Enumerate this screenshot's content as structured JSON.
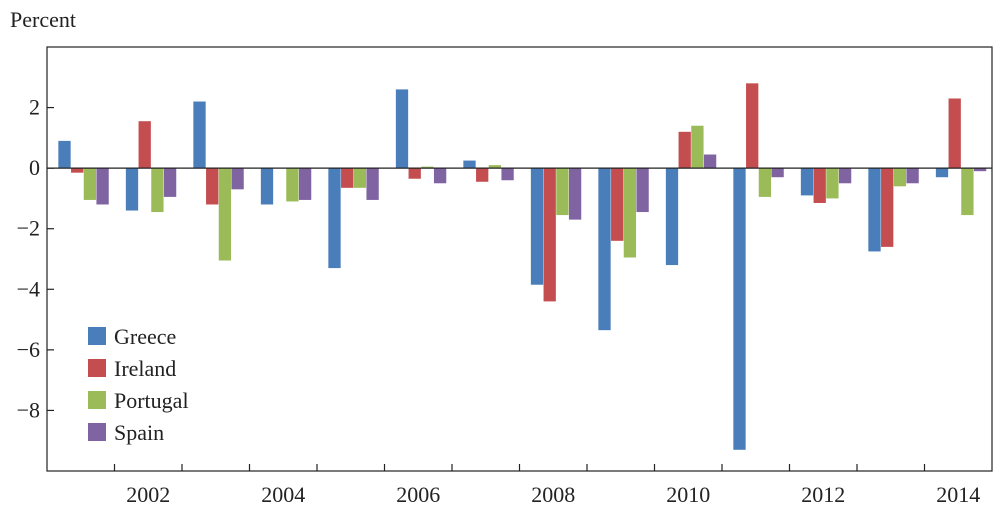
{
  "chart_data": {
    "type": "bar",
    "unit_label": "Percent",
    "x_tick_labels": [
      "2002",
      "2004",
      "2006",
      "2008",
      "2010",
      "2012",
      "2014"
    ],
    "categories": [
      "2001",
      "2002",
      "2003",
      "2004",
      "2005",
      "2006",
      "2007",
      "2008",
      "2009",
      "2010",
      "2011",
      "2012",
      "2013",
      "2014"
    ],
    "ylim": [
      -10,
      4
    ],
    "y_ticks": [
      2,
      0,
      -2,
      -4,
      -6,
      -8
    ],
    "y_tick_labels": [
      "2",
      "0",
      "−2",
      "−4",
      "−6",
      "−8"
    ],
    "grid": false,
    "legend_position": "bottom-left",
    "series": [
      {
        "name": "Greece",
        "color": "#4a7ebb",
        "values": [
          0.9,
          -1.4,
          2.2,
          -1.2,
          -3.3,
          2.6,
          0.25,
          -3.85,
          -5.35,
          -3.2,
          -9.3,
          -0.9,
          -2.75,
          -0.3
        ]
      },
      {
        "name": "Ireland",
        "color": "#c44e4f",
        "values": [
          -0.15,
          1.55,
          -1.2,
          null,
          -0.65,
          -0.35,
          -0.45,
          -4.4,
          -2.4,
          1.2,
          2.8,
          -1.15,
          -2.6,
          2.3
        ]
      },
      {
        "name": "Portugal",
        "color": "#9bbb59",
        "values": [
          -1.05,
          -1.45,
          -3.05,
          -1.1,
          -0.65,
          0.05,
          0.1,
          -1.55,
          -2.95,
          1.4,
          -0.95,
          -1.0,
          -0.6,
          -1.55
        ]
      },
      {
        "name": "Spain",
        "color": "#8064a2",
        "values": [
          -1.2,
          -0.95,
          -0.7,
          -1.05,
          -1.05,
          -0.5,
          -0.4,
          -1.7,
          -1.45,
          0.45,
          -0.3,
          -0.5,
          -0.5,
          -0.1
        ]
      }
    ]
  }
}
